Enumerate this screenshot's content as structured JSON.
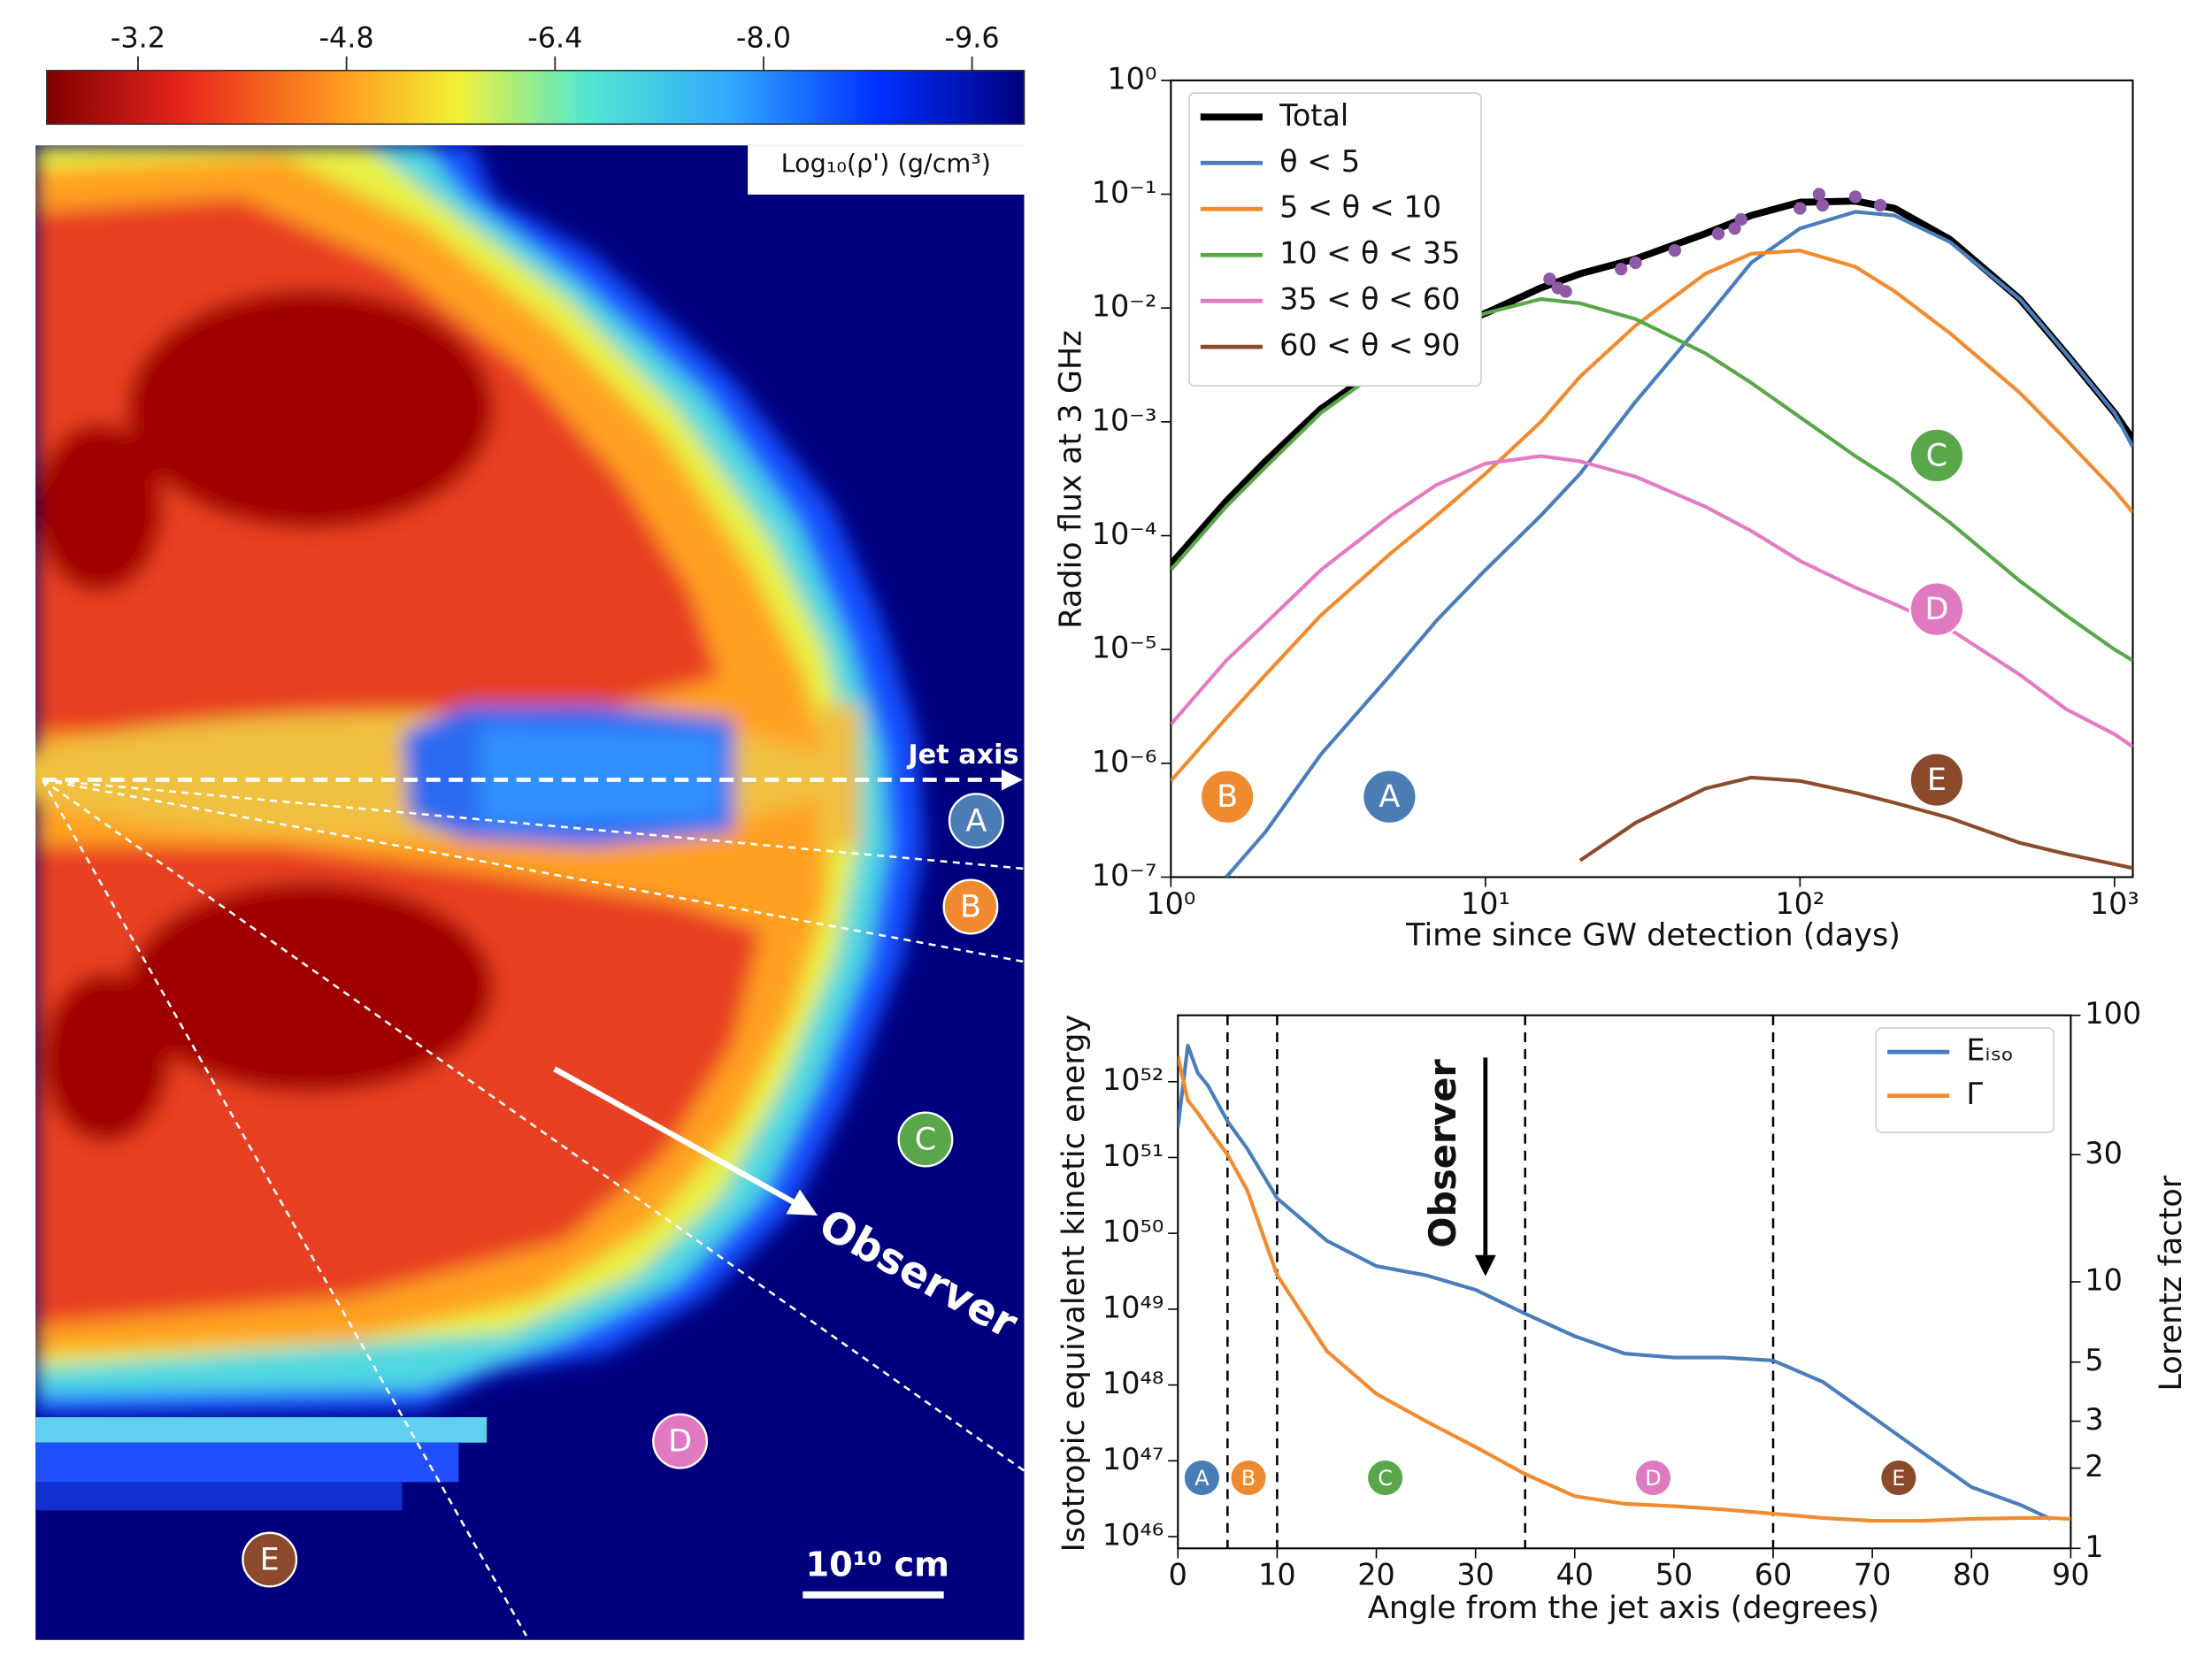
{
  "chart_data": [
    {
      "type": "image",
      "colorbar": {
        "label": "Log₁₀(ρ') (g/cm³)",
        "lim": [
          -2.5,
          -10.0
        ],
        "ticks": [
          -3.2,
          -4.8,
          -6.4,
          {
            "value": -8,
            "label": "-8.0"
          },
          -9.6
        ]
      },
      "labels": [
        "Jet axis",
        "Observer"
      ],
      "scale_bar": "10¹⁰ cm",
      "markers": [
        {
          "label": "A",
          "color": "#4a7db5"
        },
        {
          "label": "B",
          "color": "#f08a30"
        },
        {
          "label": "C",
          "color": "#5aa64a"
        },
        {
          "label": "D",
          "color": "#e07ac0"
        },
        {
          "label": "E",
          "color": "#8b4a2b"
        }
      ]
    },
    {
      "type": "line",
      "xscale": "log",
      "yscale": "log",
      "xlabel": "Time since GW detection (days)",
      "ylabel": "Radio flux at 3 GHz",
      "x": [
        1,
        1.5,
        2,
        3,
        5,
        7,
        10,
        15,
        20,
        30,
        50,
        70,
        100,
        150,
        200,
        300,
        500,
        700,
        1000,
        1143
      ],
      "xlim": [
        1,
        1143
      ],
      "ylim": [
        1e-07,
        1
      ],
      "xticks": [
        {
          "value": 1,
          "label": "10⁰"
        },
        {
          "value": 10,
          "label": "10¹"
        },
        {
          "value": 100,
          "label": "10²"
        },
        {
          "value": 1000,
          "label": "10³"
        }
      ],
      "yticks": [
        {
          "value": 1e-07,
          "label": "10⁻⁷"
        },
        {
          "value": 1e-06,
          "label": "10⁻⁶"
        },
        {
          "value": 1e-05,
          "label": "10⁻⁵"
        },
        {
          "value": 0.0001,
          "label": "10⁻⁴"
        },
        {
          "value": 0.001,
          "label": "10⁻³"
        },
        {
          "value": 0.01,
          "label": "10⁻²"
        },
        {
          "value": 0.1,
          "label": "10⁻¹"
        },
        {
          "value": 1,
          "label": "10⁰"
        }
      ],
      "legend": "upper left",
      "series": [
        {
          "name": "Total",
          "color": "#000000",
          "values": [
            5.6e-05,
            0.0002,
            0.00045,
            0.0013,
            0.0035,
            0.006,
            0.009,
            0.015,
            0.02,
            0.027,
            0.045,
            0.065,
            0.085,
            0.087,
            0.075,
            0.04,
            0.012,
            0.004,
            0.0012,
            0.0007
          ]
        },
        {
          "name": "θ < 5",
          "color": "#4a7ebb",
          "values": [
            null,
            1e-07,
            2.5e-07,
            1.2e-06,
            6e-06,
            1.8e-05,
            5e-05,
            0.00015,
            0.00035,
            0.0015,
            0.008,
            0.025,
            0.05,
            0.07,
            0.065,
            0.038,
            0.012,
            0.004,
            0.0012,
            0.0006
          ]
        },
        {
          "name": "5 < θ < 10",
          "color": "#f28a2e",
          "values": [
            7e-07,
            2.5e-06,
            6e-06,
            2e-05,
            7e-05,
            0.00015,
            0.00035,
            0.001,
            0.0025,
            0.007,
            0.02,
            0.03,
            0.032,
            0.023,
            0.014,
            0.006,
            0.0018,
            0.0007,
            0.00025,
            0.00016
          ]
        },
        {
          "name": "10 < θ < 35",
          "color": "#58a84a",
          "values": [
            5e-05,
            0.00018,
            0.0004,
            0.0012,
            0.0033,
            0.006,
            0.009,
            0.012,
            0.011,
            0.008,
            0.004,
            0.0022,
            0.0011,
            0.0005,
            0.0003,
            0.00013,
            4e-05,
            2e-05,
            1e-05,
            8e-06
          ]
        },
        {
          "name": "35 < θ < 60",
          "color": "#e37bc2",
          "values": [
            2.2e-06,
            8e-06,
            1.7e-05,
            5e-05,
            0.00015,
            0.00028,
            0.00043,
            0.0005,
            0.00045,
            0.00033,
            0.00018,
            0.00011,
            6e-05,
            3.5e-05,
            2.5e-05,
            1.5e-05,
            6e-06,
            3e-06,
            1.8e-06,
            1.4e-06
          ]
        },
        {
          "name": "60 < θ < 90",
          "color": "#8c4b2a",
          "values": [
            null,
            null,
            null,
            null,
            null,
            null,
            null,
            null,
            1.4e-07,
            3e-07,
            6e-07,
            7.5e-07,
            7e-07,
            5.5e-07,
            4.5e-07,
            3.3e-07,
            2e-07,
            1.6e-07,
            1.3e-07,
            1.2e-07
          ]
        }
      ],
      "points": {
        "color": "#8e5aa8",
        "x": [
          16,
          17,
          18,
          27,
          30,
          40,
          55,
          62,
          65,
          100,
          115,
          118,
          150,
          180
        ],
        "values": [
          0.018,
          0.015,
          0.014,
          0.022,
          0.025,
          0.032,
          0.045,
          0.05,
          0.06,
          0.075,
          0.1,
          0.08,
          0.095,
          0.08
        ]
      },
      "markers": [
        {
          "label": "B",
          "color": "#f08a30"
        },
        {
          "label": "A",
          "color": "#4a7db5"
        },
        {
          "label": "C",
          "color": "#5aa64a"
        },
        {
          "label": "D",
          "color": "#e07ac0"
        },
        {
          "label": "E",
          "color": "#8b4a2b"
        }
      ]
    },
    {
      "type": "line",
      "yscale": "log",
      "y2scale": "log",
      "xlabel": "Angle from the jet axis (degrees)",
      "ylabel": "Isotropic equivalent kinetic energy",
      "y2label": "Lorentz factor",
      "x": [
        0,
        1,
        2,
        3,
        5,
        7,
        10,
        15,
        20,
        25,
        30,
        35,
        40,
        45,
        50,
        55,
        60,
        65,
        70,
        75,
        80,
        85,
        88,
        90
      ],
      "xlim": [
        0,
        90
      ],
      "ylim": [
        7e+45,
        7.5e+52
      ],
      "y2lim": [
        1,
        100
      ],
      "xticks": [
        0,
        10,
        20,
        30,
        40,
        50,
        60,
        70,
        80,
        90
      ],
      "yticks": [
        {
          "value": 1e+46,
          "label": "10⁴⁶"
        },
        {
          "value": 1e+47,
          "label": "10⁴⁷"
        },
        {
          "value": 1e+48,
          "label": "10⁴⁸"
        },
        {
          "value": 1e+49,
          "label": "10⁴⁹"
        },
        {
          "value": 1e+50,
          "label": "10⁵⁰"
        },
        {
          "value": 1e+51,
          "label": "10⁵¹"
        },
        {
          "value": 1e+52,
          "label": "10⁵²"
        }
      ],
      "y2ticks": [
        1,
        2,
        3,
        5,
        10,
        30,
        100
      ],
      "legend": "upper right",
      "series": [
        {
          "name": "Eᵢₛₒ",
          "color": "#4a7ebb",
          "values": [
            2.5e+51,
            3e+52,
            1.3e+52,
            9e+51,
            3e+51,
            1.3e+51,
            2.9e+50,
            8e+49,
            3.7e+49,
            2.8e+49,
            1.8e+49,
            8.7e+48,
            4.4e+48,
            2.6e+48,
            2.3e+48,
            2.3e+48,
            2.1e+48,
            1.1e+48,
            3.8e+47,
            1.3e+47,
            4.5e+46,
            2.6e+46,
            1.7e+46,
            null
          ]
        },
        {
          "name": "Γ",
          "color": "#f28a2e",
          "axis": "y2",
          "values": [
            70,
            48,
            43,
            38,
            30,
            22,
            10.6,
            5.5,
            3.8,
            3,
            2.4,
            1.9,
            1.57,
            1.47,
            1.44,
            1.4,
            1.35,
            1.3,
            1.27,
            1.27,
            1.29,
            1.3,
            1.3,
            1.29
          ]
        }
      ],
      "vlines": [
        5,
        10,
        35,
        60
      ],
      "annotation": "Observer",
      "markers": [
        {
          "label": "A",
          "color": "#4a7db5"
        },
        {
          "label": "B",
          "color": "#f08a30"
        },
        {
          "label": "C",
          "color": "#5aa64a"
        },
        {
          "label": "D",
          "color": "#e07ac0"
        },
        {
          "label": "E",
          "color": "#8b4a2b"
        }
      ]
    }
  ]
}
